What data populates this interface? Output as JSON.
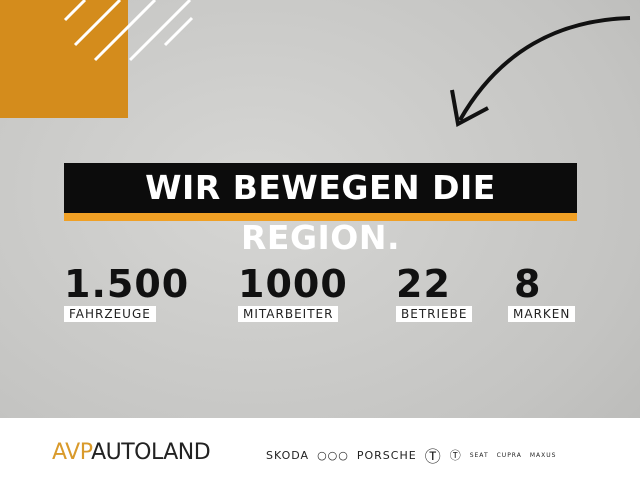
{
  "headline": "WIR BEWEGEN DIE REGION.",
  "stats": [
    {
      "value": "1.500",
      "label": "FAHRZEUGE"
    },
    {
      "value": "1000",
      "label": "MITARBEITER"
    },
    {
      "value": "22",
      "label": "BETRIEBE"
    },
    {
      "value": "8",
      "label": "MARKEN"
    }
  ],
  "logo": {
    "part1": "AVP",
    "part2": "AUTOLAND"
  },
  "brands": [
    "SKODA",
    "PORSCHE",
    "SEAT",
    "CUPRA",
    "MAXUS"
  ],
  "colors": {
    "accent": "#f0a025",
    "orange_block": "#d48c1c",
    "banner": "#0c0c0c"
  }
}
